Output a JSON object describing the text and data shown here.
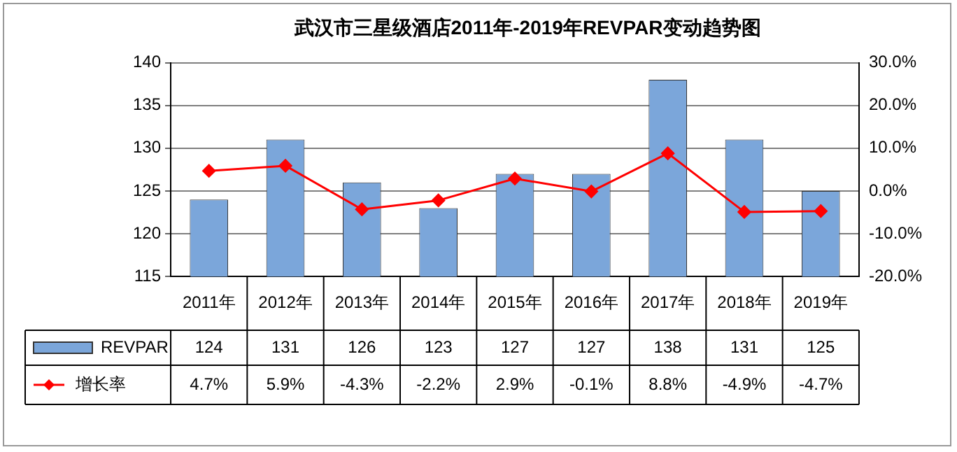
{
  "chart_data": {
    "type": "bar",
    "title": "武汉市三星级酒店2011年-2019年REVPAR变动趋势图",
    "categories": [
      "2011年",
      "2012年",
      "2013年",
      "2014年",
      "2015年",
      "2016年",
      "2017年",
      "2018年",
      "2019年"
    ],
    "series": [
      {
        "name": "REVPAR",
        "color": "#7ba6da",
        "values": [
          124,
          131,
          126,
          123,
          127,
          127,
          138,
          131,
          125
        ],
        "value_labels": [
          "124",
          "131",
          "126",
          "123",
          "127",
          "127",
          "138",
          "131",
          "125"
        ]
      },
      {
        "name": "增长率",
        "type": "line",
        "axis": "y2",
        "color": "#ff0000",
        "marker": "diamond",
        "values": [
          4.7,
          5.9,
          -4.3,
          -2.2,
          2.9,
          -0.1,
          8.8,
          -4.9,
          -4.7
        ],
        "value_labels": [
          "4.7%",
          "5.9%",
          "-4.3%",
          "-2.2%",
          "2.9%",
          "-0.1%",
          "8.8%",
          "-4.9%",
          "-4.7%"
        ]
      }
    ],
    "ylim": [
      115,
      140
    ],
    "yticks": [
      115,
      120,
      125,
      130,
      135,
      140
    ],
    "y2lim": [
      -20,
      30
    ],
    "y2ticks": [
      {
        "value": -20,
        "label": "-20.0%"
      },
      {
        "value": -10,
        "label": "-10.0%"
      },
      {
        "value": 0,
        "label": "0.0%"
      },
      {
        "value": 10,
        "label": "10.0%"
      },
      {
        "value": 20,
        "label": "20.0%"
      },
      {
        "value": 30,
        "label": "30.0%"
      }
    ],
    "grid": "y",
    "legend": "bottom"
  }
}
